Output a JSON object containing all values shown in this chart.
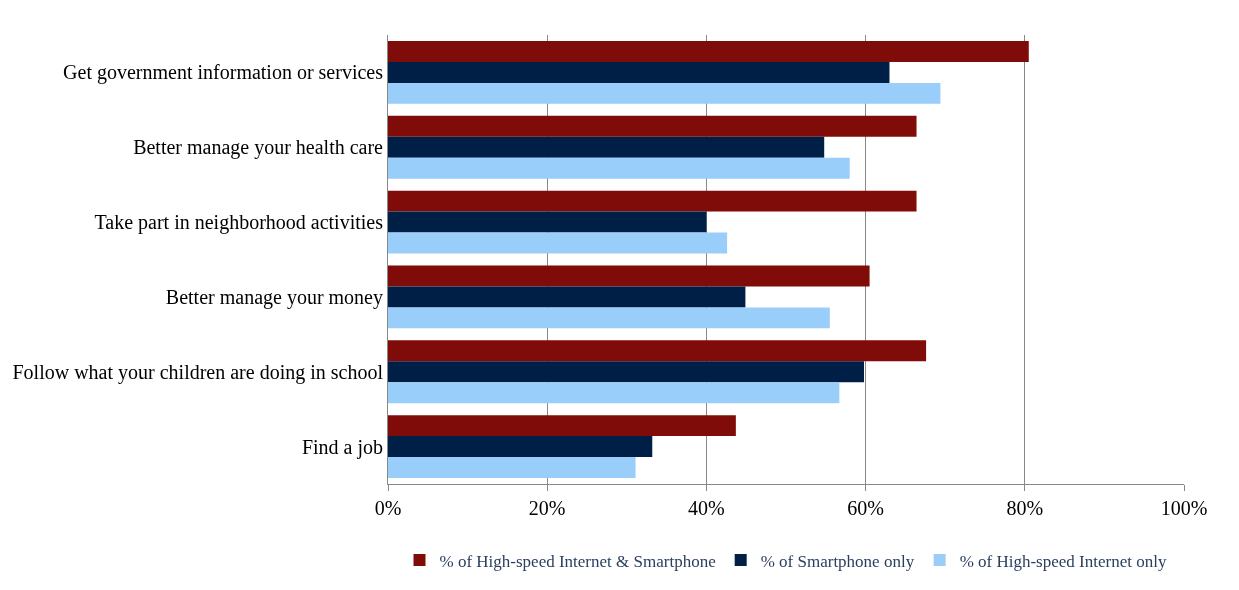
{
  "chart_data": {
    "type": "bar",
    "orientation": "horizontal",
    "categories": [
      "Get government information or services",
      "Better manage your health care",
      "Take part in neighborhood activities",
      "Better manage your money",
      "Follow what your children are doing in school",
      "Find a job"
    ],
    "series": [
      {
        "name": "% of High-speed Internet & Smartphone",
        "color": "#800c0a",
        "values": [
          80.5,
          66.4,
          66.4,
          60.5,
          67.6,
          43.7
        ]
      },
      {
        "name": "% of Smartphone only",
        "color": "#001f47",
        "values": [
          63,
          54.8,
          40,
          44.9,
          59.8,
          33.2
        ]
      },
      {
        "name": "% of High-speed Internet only",
        "color": "#99cdfa",
        "values": [
          69.4,
          58,
          42.6,
          55.5,
          56.7,
          31.1
        ]
      }
    ],
    "xlim": [
      0,
      100
    ],
    "xticks": [
      {
        "value": 0,
        "label": "0%"
      },
      {
        "value": 20,
        "label": "20%"
      },
      {
        "value": 40,
        "label": "40%"
      },
      {
        "value": 60,
        "label": "60%"
      },
      {
        "value": 80,
        "label": "80%"
      },
      {
        "value": 100,
        "label": "100%"
      }
    ],
    "grid": "x",
    "legend": "bottom"
  }
}
